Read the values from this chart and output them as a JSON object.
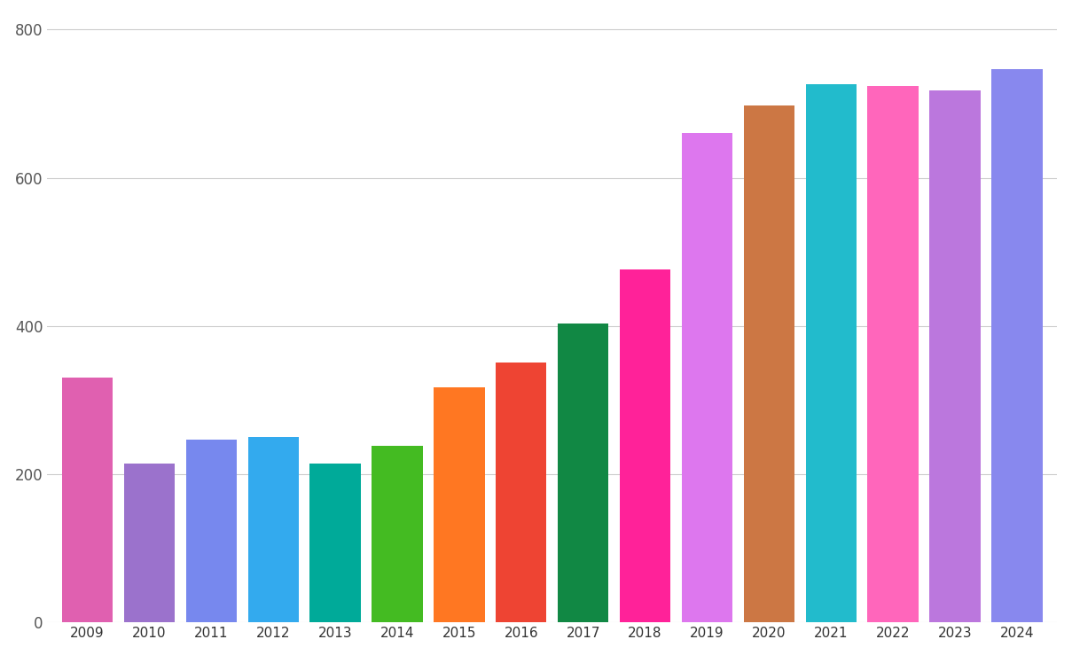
{
  "years": [
    2009,
    2010,
    2011,
    2012,
    2013,
    2014,
    2015,
    2016,
    2017,
    2018,
    2019,
    2020,
    2021,
    2022,
    2023,
    2024
  ],
  "values": [
    330,
    215,
    247,
    251,
    215,
    238,
    317,
    351,
    404,
    477,
    660,
    698,
    726,
    724,
    718,
    747
  ],
  "bar_colors": [
    "#E060B0",
    "#9B72CC",
    "#7788EE",
    "#33AAEE",
    "#00AA99",
    "#44BB22",
    "#FF7722",
    "#EE4433",
    "#118844",
    "#FF2299",
    "#DD77EE",
    "#CC7744",
    "#22BBCC",
    "#FF66BB",
    "#BB77DD",
    "#8888EE"
  ],
  "ylim": [
    0,
    820
  ],
  "yticks": [
    0,
    200,
    400,
    600,
    800
  ],
  "background_color": "#ffffff",
  "grid_color": "#cccccc",
  "bar_width": 0.82
}
